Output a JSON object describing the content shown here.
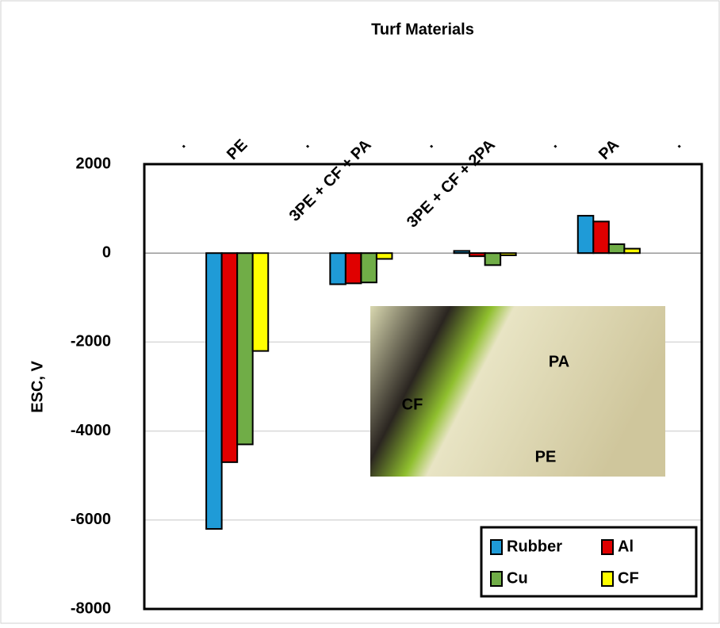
{
  "chart_data": {
    "type": "bar",
    "title": "Turf Materials",
    "y_label": "ESC, V",
    "categories": [
      ".",
      "PE",
      ".",
      "3PE + CF + PA",
      ".",
      "3PE + CF + 2PA",
      ".",
      "PA",
      "."
    ],
    "series": [
      {
        "name": "Rubber",
        "color": "#1f9bd7",
        "values": [
          null,
          -6200,
          null,
          -700,
          null,
          50,
          null,
          840,
          null
        ]
      },
      {
        "name": "Al",
        "color": "#e00000",
        "values": [
          null,
          -4700,
          null,
          -680,
          null,
          -70,
          null,
          710,
          null
        ]
      },
      {
        "name": "Cu",
        "color": "#70ad47",
        "values": [
          null,
          -4300,
          null,
          -660,
          null,
          -270,
          null,
          200,
          null
        ]
      },
      {
        "name": "CF",
        "color": "#ffff00",
        "values": [
          null,
          -2200,
          null,
          -130,
          null,
          -50,
          null,
          100,
          null
        ]
      }
    ],
    "ylim": [
      -8000,
      2000
    ],
    "yticks": [
      -8000,
      -6000,
      -4000,
      -2000,
      0,
      2000
    ],
    "grid": true,
    "legend": "bottom-right",
    "inset_labels": [
      "CF",
      "PA",
      "PE"
    ]
  }
}
